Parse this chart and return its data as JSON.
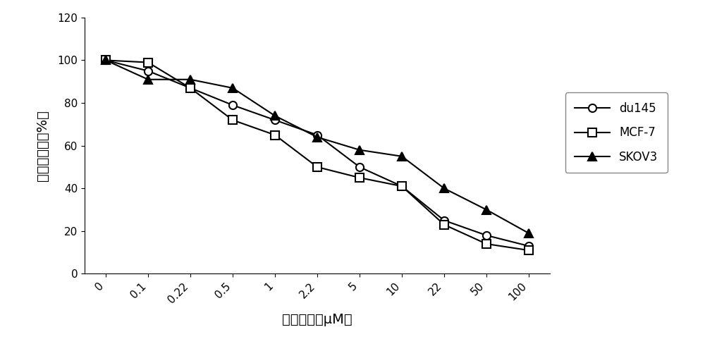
{
  "x_labels": [
    "0",
    "0.1",
    "0.22",
    "0.5",
    "1",
    "2.2",
    "5",
    "10",
    "22",
    "50",
    "100"
  ],
  "x_positions": [
    0,
    1,
    2,
    3,
    4,
    5,
    6,
    7,
    8,
    9,
    10
  ],
  "du145": [
    100,
    95,
    87,
    79,
    72,
    65,
    50,
    41,
    25,
    18,
    13
  ],
  "mcf7": [
    100,
    99,
    87,
    72,
    65,
    50,
    45,
    41,
    23,
    14,
    11
  ],
  "skov3": [
    100,
    91,
    91,
    87,
    74,
    64,
    58,
    55,
    40,
    30,
    19
  ],
  "xlabel": "药物浓度（μM）",
  "ylabel": "细胞存活率（%）",
  "ylim": [
    0,
    120
  ],
  "yticks": [
    0,
    20,
    40,
    60,
    80,
    100,
    120
  ],
  "legend_labels": [
    "du145",
    "MCF-7",
    "SKOV3"
  ],
  "line_color": "#000000",
  "bg_color": "#ffffff",
  "fig_width": 10.0,
  "fig_height": 4.98
}
